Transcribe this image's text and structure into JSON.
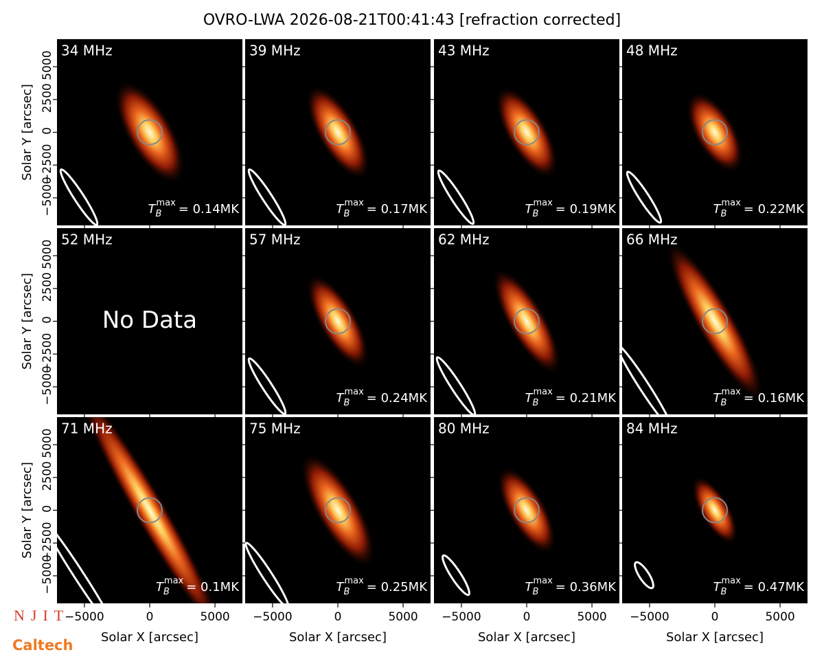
{
  "chart_data": {
    "type": "heatmap",
    "title": "OVRO-LWA 2026-08-21T00:41:43 [refraction corrected]",
    "x_label": "Solar X [arcsec]",
    "y_label": "Solar Y [arcsec]",
    "xlim": [
      -7100,
      7100
    ],
    "ylim": [
      -7100,
      7100
    ],
    "xticks": [
      {
        "value": -5000,
        "label": "−5000"
      },
      0,
      5000
    ],
    "yticks": [
      {
        "value": -5000,
        "label": "−5000"
      },
      {
        "value": -2500,
        "label": "−2500"
      },
      0,
      2500,
      5000
    ],
    "tmax_symbol": {
      "base": "T",
      "sub": "B",
      "sup": "max"
    },
    "panels": [
      {
        "label": "34 MHz",
        "tmax": "= 0.14MK"
      },
      {
        "label": "39 MHz",
        "tmax": "= 0.17MK"
      },
      {
        "label": "43 MHz",
        "tmax": "= 0.19MK"
      },
      {
        "label": "48 MHz",
        "tmax": "= 0.22MK"
      },
      {
        "label": "52 MHz",
        "note": "No Data"
      },
      {
        "label": "57 MHz",
        "tmax": "= 0.24MK"
      },
      {
        "label": "62 MHz",
        "tmax": "= 0.21MK"
      },
      {
        "label": "66 MHz",
        "tmax": "= 0.16MK"
      },
      {
        "label": "71 MHz",
        "tmax": "= 0.1MK"
      },
      {
        "label": "75 MHz",
        "tmax": "= 0.25MK"
      },
      {
        "label": "80 MHz",
        "tmax": "= 0.36MK"
      },
      {
        "label": "84 MHz",
        "tmax": "= 0.47MK"
      }
    ]
  },
  "logos": {
    "top": "NJIT",
    "bottom": "Caltech"
  }
}
